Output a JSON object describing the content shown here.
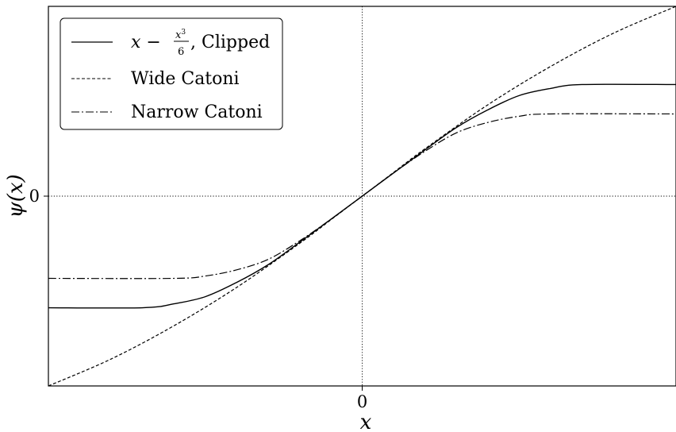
{
  "chart_data": {
    "type": "line",
    "title": "",
    "xlabel": "x",
    "ylabel": "ψ(x)",
    "xlim": [
      -2.5,
      2.5
    ],
    "ylim": [
      -1.5,
      1.5
    ],
    "x_ticks": [
      {
        "value": 0,
        "label": "0"
      }
    ],
    "y_ticks": [
      {
        "value": 0,
        "label": "0"
      }
    ],
    "reference_lines": [
      {
        "orientation": "vertical",
        "value": 0,
        "style": "dotted"
      },
      {
        "orientation": "horizontal",
        "value": 0,
        "style": "dotted"
      }
    ],
    "grid": false,
    "legend": {
      "position": "top-left"
    },
    "series": [
      {
        "name": "x − x³/6, Clipped",
        "legend_text": "Clipped",
        "style": "solid",
        "color": "#000000",
        "points": [
          [
            -2.5,
            -0.8819
          ],
          [
            -1.75,
            -0.8819
          ],
          [
            -1.5,
            -0.8509
          ],
          [
            -1.25,
            -0.7946
          ],
          [
            -1.0,
            -0.6818
          ],
          [
            -0.75,
            -0.5421
          ],
          [
            -0.5,
            -0.3654
          ],
          [
            -0.25,
            -0.1833
          ],
          [
            0.0,
            0.0
          ],
          [
            0.25,
            0.1833
          ],
          [
            0.5,
            0.3654
          ],
          [
            0.75,
            0.5421
          ],
          [
            1.0,
            0.6818
          ],
          [
            1.25,
            0.7946
          ],
          [
            1.5,
            0.8509
          ],
          [
            1.75,
            0.8819
          ],
          [
            2.5,
            0.8819
          ]
        ]
      },
      {
        "name": "Wide Catoni",
        "style": "dashed",
        "color": "#000000",
        "points": [
          [
            -2.5,
            -1.5
          ],
          [
            -2.0,
            -1.2869
          ],
          [
            -1.5,
            -1.0245
          ],
          [
            -1.0,
            -0.7213
          ],
          [
            -0.5,
            -0.3744
          ],
          [
            -0.25,
            -0.1873
          ],
          [
            0.0,
            0.0
          ],
          [
            0.25,
            0.1873
          ],
          [
            0.5,
            0.3744
          ],
          [
            1.0,
            0.7213
          ],
          [
            1.5,
            1.0245
          ],
          [
            2.0,
            1.2869
          ],
          [
            2.5,
            1.5
          ]
        ]
      },
      {
        "name": "Narrow Catoni",
        "style": "dashdot",
        "color": "#000000",
        "points": [
          [
            -2.5,
            -0.6498
          ],
          [
            -1.5,
            -0.6498
          ],
          [
            -1.25,
            -0.6312
          ],
          [
            -1.0,
            -0.5824
          ],
          [
            -0.75,
            -0.5001
          ],
          [
            -0.5,
            -0.3544
          ],
          [
            -0.25,
            -0.1833
          ],
          [
            0.0,
            0.0
          ],
          [
            0.25,
            0.1833
          ],
          [
            0.5,
            0.3544
          ],
          [
            0.75,
            0.5001
          ],
          [
            1.0,
            0.5824
          ],
          [
            1.25,
            0.6312
          ],
          [
            1.5,
            0.6498
          ],
          [
            2.5,
            0.6498
          ]
        ]
      }
    ]
  }
}
